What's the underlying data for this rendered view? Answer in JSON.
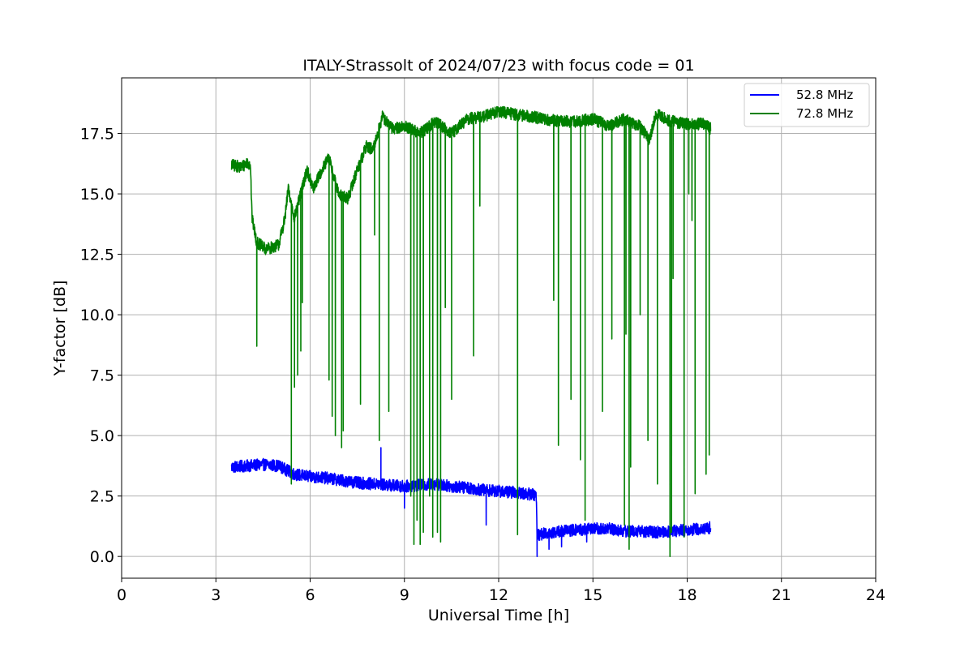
{
  "chart_data": {
    "type": "line",
    "title": "ITALY-Strassolt of 2024/07/23 with focus code = 01",
    "xlabel": "Universal Time [h]",
    "ylabel": "Y-factor [dB]",
    "xlim": [
      0,
      24
    ],
    "ylim": [
      -0.9,
      19.8
    ],
    "xticks": [
      0,
      3,
      6,
      9,
      12,
      15,
      18,
      21,
      24
    ],
    "yticks": [
      0.0,
      2.5,
      5.0,
      7.5,
      10.0,
      12.5,
      15.0,
      17.5
    ],
    "xtick_labels": [
      "0",
      "3",
      "6",
      "9",
      "12",
      "15",
      "18",
      "21",
      "24"
    ],
    "ytick_labels": [
      "0.0",
      "2.5",
      "5.0",
      "7.5",
      "10.0",
      "12.5",
      "15.0",
      "17.5"
    ],
    "grid": true,
    "legend": "top-right",
    "series": [
      {
        "name": "52.8 MHz",
        "color": "#0000ff",
        "noise": 0.25,
        "points": [
          [
            3.5,
            3.7
          ],
          [
            4.0,
            3.75
          ],
          [
            4.5,
            3.8
          ],
          [
            5.0,
            3.75
          ],
          [
            5.5,
            3.4
          ],
          [
            6.0,
            3.3
          ],
          [
            6.5,
            3.25
          ],
          [
            7.0,
            3.15
          ],
          [
            7.5,
            3.05
          ],
          [
            8.0,
            3.0
          ],
          [
            8.5,
            2.95
          ],
          [
            9.0,
            2.9
          ],
          [
            9.5,
            2.95
          ],
          [
            10.0,
            3.0
          ],
          [
            10.5,
            2.9
          ],
          [
            11.0,
            2.85
          ],
          [
            11.5,
            2.75
          ],
          [
            12.0,
            2.7
          ],
          [
            12.5,
            2.65
          ],
          [
            13.2,
            2.55
          ],
          [
            13.22,
            0.9
          ],
          [
            13.5,
            0.95
          ],
          [
            14.0,
            1.05
          ],
          [
            14.5,
            1.1
          ],
          [
            15.0,
            1.15
          ],
          [
            15.5,
            1.15
          ],
          [
            16.0,
            1.05
          ],
          [
            16.5,
            1.05
          ],
          [
            17.0,
            1.0
          ],
          [
            17.5,
            1.05
          ],
          [
            18.0,
            1.1
          ],
          [
            18.5,
            1.15
          ],
          [
            18.75,
            1.2
          ]
        ],
        "spikes": [
          [
            8.25,
            4.5
          ],
          [
            9.0,
            2.0
          ],
          [
            11.6,
            1.3
          ],
          [
            13.22,
            0.0
          ],
          [
            13.6,
            0.3
          ],
          [
            14.0,
            0.4
          ],
          [
            14.8,
            0.6
          ]
        ]
      },
      {
        "name": "72.8 MHz",
        "color": "#008000",
        "noise": 0.25,
        "points": [
          [
            3.5,
            16.2
          ],
          [
            3.8,
            16.1
          ],
          [
            4.0,
            16.3
          ],
          [
            4.1,
            16.2
          ],
          [
            4.15,
            14.0
          ],
          [
            4.3,
            13.0
          ],
          [
            4.6,
            12.7
          ],
          [
            5.0,
            12.9
          ],
          [
            5.2,
            14.0
          ],
          [
            5.3,
            15.2
          ],
          [
            5.5,
            14.0
          ],
          [
            5.7,
            15.0
          ],
          [
            5.9,
            16.0
          ],
          [
            6.1,
            15.2
          ],
          [
            6.3,
            15.8
          ],
          [
            6.6,
            16.5
          ],
          [
            6.9,
            15.0
          ],
          [
            7.2,
            14.8
          ],
          [
            7.5,
            16.0
          ],
          [
            7.8,
            17.0
          ],
          [
            8.0,
            16.8
          ],
          [
            8.3,
            18.2
          ],
          [
            8.6,
            17.7
          ],
          [
            9.0,
            17.8
          ],
          [
            9.5,
            17.5
          ],
          [
            10.0,
            18.0
          ],
          [
            10.5,
            17.5
          ],
          [
            11.0,
            18.1
          ],
          [
            11.5,
            18.2
          ],
          [
            12.0,
            18.4
          ],
          [
            12.5,
            18.3
          ],
          [
            13.0,
            18.2
          ],
          [
            13.5,
            18.1
          ],
          [
            14.0,
            18.0
          ],
          [
            14.5,
            18.0
          ],
          [
            15.0,
            18.1
          ],
          [
            15.5,
            17.8
          ],
          [
            16.0,
            18.1
          ],
          [
            16.5,
            17.8
          ],
          [
            16.8,
            17.2
          ],
          [
            17.0,
            18.3
          ],
          [
            17.5,
            18.0
          ],
          [
            18.0,
            17.9
          ],
          [
            18.5,
            17.9
          ],
          [
            18.75,
            17.7
          ]
        ],
        "spikes": [
          [
            4.3,
            8.7
          ],
          [
            5.4,
            3.0
          ],
          [
            5.5,
            7.0
          ],
          [
            5.6,
            7.5
          ],
          [
            5.7,
            8.5
          ],
          [
            5.75,
            10.5
          ],
          [
            6.6,
            7.3
          ],
          [
            6.7,
            5.8
          ],
          [
            6.8,
            5.0
          ],
          [
            7.0,
            4.5
          ],
          [
            7.05,
            5.2
          ],
          [
            7.6,
            6.3
          ],
          [
            8.2,
            4.8
          ],
          [
            8.5,
            6.0
          ],
          [
            8.05,
            13.3
          ],
          [
            9.2,
            2.5
          ],
          [
            9.3,
            0.5
          ],
          [
            9.4,
            1.5
          ],
          [
            9.5,
            0.5
          ],
          [
            9.6,
            1.0
          ],
          [
            9.8,
            2.5
          ],
          [
            9.9,
            0.8
          ],
          [
            10.05,
            1.0
          ],
          [
            10.15,
            0.6
          ],
          [
            10.3,
            10.3
          ],
          [
            10.5,
            6.5
          ],
          [
            11.2,
            8.3
          ],
          [
            11.4,
            14.5
          ],
          [
            12.6,
            0.9
          ],
          [
            13.75,
            10.6
          ],
          [
            13.9,
            4.6
          ],
          [
            14.3,
            6.5
          ],
          [
            14.6,
            4.0
          ],
          [
            14.75,
            1.5
          ],
          [
            15.3,
            6.0
          ],
          [
            15.6,
            9.0
          ],
          [
            16.0,
            1.3
          ],
          [
            16.05,
            9.2
          ],
          [
            16.15,
            0.3
          ],
          [
            16.2,
            3.7
          ],
          [
            16.5,
            10.0
          ],
          [
            16.75,
            4.8
          ],
          [
            17.05,
            3.0
          ],
          [
            17.45,
            0.0
          ],
          [
            17.5,
            1.0
          ],
          [
            17.55,
            11.5
          ],
          [
            17.9,
            0.8
          ],
          [
            18.05,
            15.0
          ],
          [
            18.15,
            13.9
          ],
          [
            18.25,
            2.6
          ],
          [
            18.6,
            3.4
          ],
          [
            18.7,
            4.2
          ],
          [
            18.75,
            4.3
          ]
        ]
      }
    ]
  }
}
